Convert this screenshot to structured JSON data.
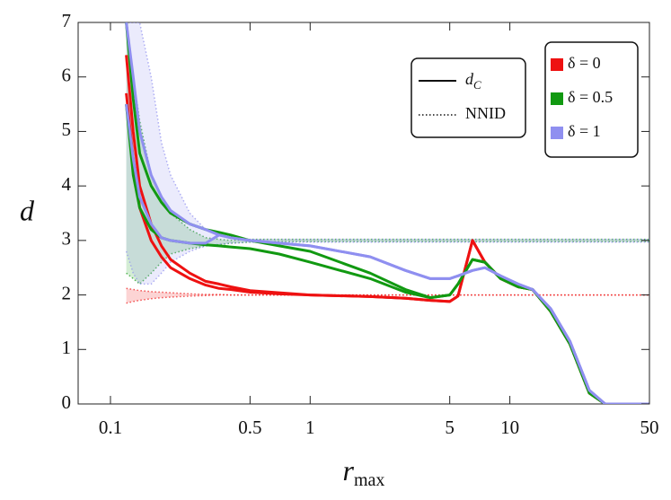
{
  "chart_data": {
    "type": "line",
    "log_x": true,
    "xlim": [
      0.0689,
      50
    ],
    "ylim": [
      0,
      7
    ],
    "xticks": [
      0.1,
      0.5,
      1,
      5,
      10,
      50
    ],
    "yticks": [
      0,
      1,
      2,
      3,
      4,
      5,
      6,
      7
    ],
    "xlabel": {
      "main": "r",
      "sub": "max"
    },
    "ylabel": "d",
    "style_legend": [
      {
        "label": "d",
        "sub": "C",
        "linestyle": "solid"
      },
      {
        "label": "NNID",
        "linestyle": "dotted"
      }
    ],
    "x": [
      0.12,
      0.13,
      0.14,
      0.16,
      0.18,
      0.2,
      0.25,
      0.3,
      0.35,
      0.4,
      0.5,
      0.7,
      1,
      2,
      3,
      4,
      5,
      5.5,
      6.5,
      7.5,
      9,
      11,
      13,
      16,
      20,
      25,
      30,
      40,
      50
    ],
    "series": [
      {
        "name": "δ = 0",
        "color": "#ee1111",
        "values": [
          6.4,
          5.0,
          4.0,
          3.3,
          2.9,
          2.65,
          2.4,
          2.25,
          2.2,
          2.15,
          2.08,
          2.04,
          2.0,
          1.97,
          1.94,
          1.9,
          1.88,
          1.98,
          3.0,
          2.6,
          2.3,
          2.15,
          2.1,
          1.7,
          1.1,
          0.2,
          0,
          0,
          0
        ],
        "values2": [
          5.7,
          4.5,
          3.6,
          3.0,
          2.7,
          2.5,
          2.3,
          2.18,
          2.12,
          2.1,
          2.05,
          2.02,
          2.0,
          1.97,
          1.94,
          1.9,
          1.88,
          1.98,
          3.0,
          2.6,
          2.3,
          2.15,
          2.1,
          1.7,
          1.1,
          0.2,
          0,
          0,
          0
        ],
        "nnid_upper": [
          2.12,
          2.1,
          2.08,
          2.06,
          2.05,
          2.04,
          2.02,
          2.01,
          2.01,
          2.0,
          2.0,
          2.0,
          2.0,
          2.0,
          2.0,
          2.0,
          2.0,
          2.0,
          2.0,
          2.0,
          2.0,
          2.0,
          2.0,
          2.0,
          2.0,
          2.0,
          2.0,
          2.0,
          2.0
        ],
        "nnid_lower": [
          1.85,
          1.88,
          1.9,
          1.93,
          1.95,
          1.96,
          1.98,
          1.99,
          2.0,
          2.0,
          2.0,
          2.0,
          2.0,
          2.0,
          2.0,
          2.0,
          2.0,
          2.0,
          2.0,
          2.0,
          2.0,
          2.0,
          2.0,
          2.0,
          2.0,
          2.0,
          2.0,
          2.0,
          2.0
        ]
      },
      {
        "name": "δ = 0.5",
        "color": "#119911",
        "values": [
          7,
          5.6,
          4.6,
          4.0,
          3.7,
          3.5,
          3.3,
          3.2,
          3.15,
          3.1,
          3.0,
          2.9,
          2.8,
          2.4,
          2.1,
          1.95,
          2.0,
          2.2,
          2.65,
          2.6,
          2.3,
          2.15,
          2.1,
          1.7,
          1.1,
          0.2,
          0,
          0,
          0
        ],
        "values2": [
          5.5,
          4.2,
          3.6,
          3.2,
          3.05,
          3.0,
          2.95,
          2.92,
          2.9,
          2.88,
          2.85,
          2.75,
          2.6,
          2.3,
          2.05,
          1.95,
          2.0,
          2.2,
          2.65,
          2.6,
          2.3,
          2.15,
          2.1,
          1.7,
          1.1,
          0.2,
          0,
          0,
          0
        ],
        "nnid_upper": [
          7,
          6,
          5.2,
          4.2,
          3.8,
          3.5,
          3.2,
          3.05,
          3.02,
          3.0,
          3.02,
          3.02,
          3.02,
          3.02,
          3.02,
          3.02,
          3.02,
          3.02,
          3.02,
          3.02,
          3.02,
          3.02,
          3.02,
          3.02,
          3.02,
          3.02,
          3.02,
          3.02,
          3.02
        ],
        "nnid_lower": [
          2.4,
          2.3,
          2.2,
          2.4,
          2.6,
          2.75,
          2.85,
          2.9,
          2.92,
          2.95,
          2.97,
          2.98,
          2.98,
          2.98,
          2.98,
          2.98,
          2.98,
          2.98,
          2.98,
          2.98,
          2.98,
          2.98,
          2.98,
          2.98,
          2.98,
          2.98,
          2.98,
          2.98,
          2.98
        ]
      },
      {
        "name": "δ = 1",
        "color": "#8f8ff0",
        "values": [
          7,
          6.0,
          5.0,
          4.2,
          3.8,
          3.55,
          3.3,
          3.2,
          3.1,
          3.05,
          3.0,
          2.95,
          2.9,
          2.7,
          2.45,
          2.3,
          2.3,
          2.35,
          2.45,
          2.5,
          2.35,
          2.2,
          2.1,
          1.75,
          1.15,
          0.25,
          0,
          0,
          0
        ],
        "values2": [
          5.5,
          4.5,
          3.8,
          3.3,
          3.05,
          3.0,
          2.95,
          2.95,
          3.1,
          3.05,
          3.0,
          2.95,
          2.9,
          2.7,
          2.45,
          2.3,
          2.3,
          2.35,
          2.45,
          2.5,
          2.35,
          2.2,
          2.1,
          1.75,
          1.15,
          0.25,
          0,
          0,
          0
        ],
        "nnid_upper": [
          7,
          7,
          7,
          6.0,
          4.8,
          4.2,
          3.5,
          3.2,
          3.1,
          3.05,
          3.02,
          3.02,
          3.02,
          3.02,
          3.02,
          3.02,
          3.02,
          3.02,
          3.02,
          3.02,
          3.02,
          3.02,
          3.02,
          3.02,
          3.02,
          3.02,
          3.02,
          3.02,
          3.02
        ],
        "nnid_lower": [
          2.8,
          2.4,
          2.2,
          2.2,
          2.4,
          2.6,
          2.8,
          2.9,
          2.93,
          2.95,
          2.97,
          2.97,
          2.97,
          2.97,
          2.97,
          2.97,
          2.97,
          2.97,
          2.97,
          2.97,
          2.97,
          2.97,
          2.97,
          2.97,
          2.97,
          2.97,
          2.97,
          2.97,
          2.97
        ]
      }
    ]
  }
}
